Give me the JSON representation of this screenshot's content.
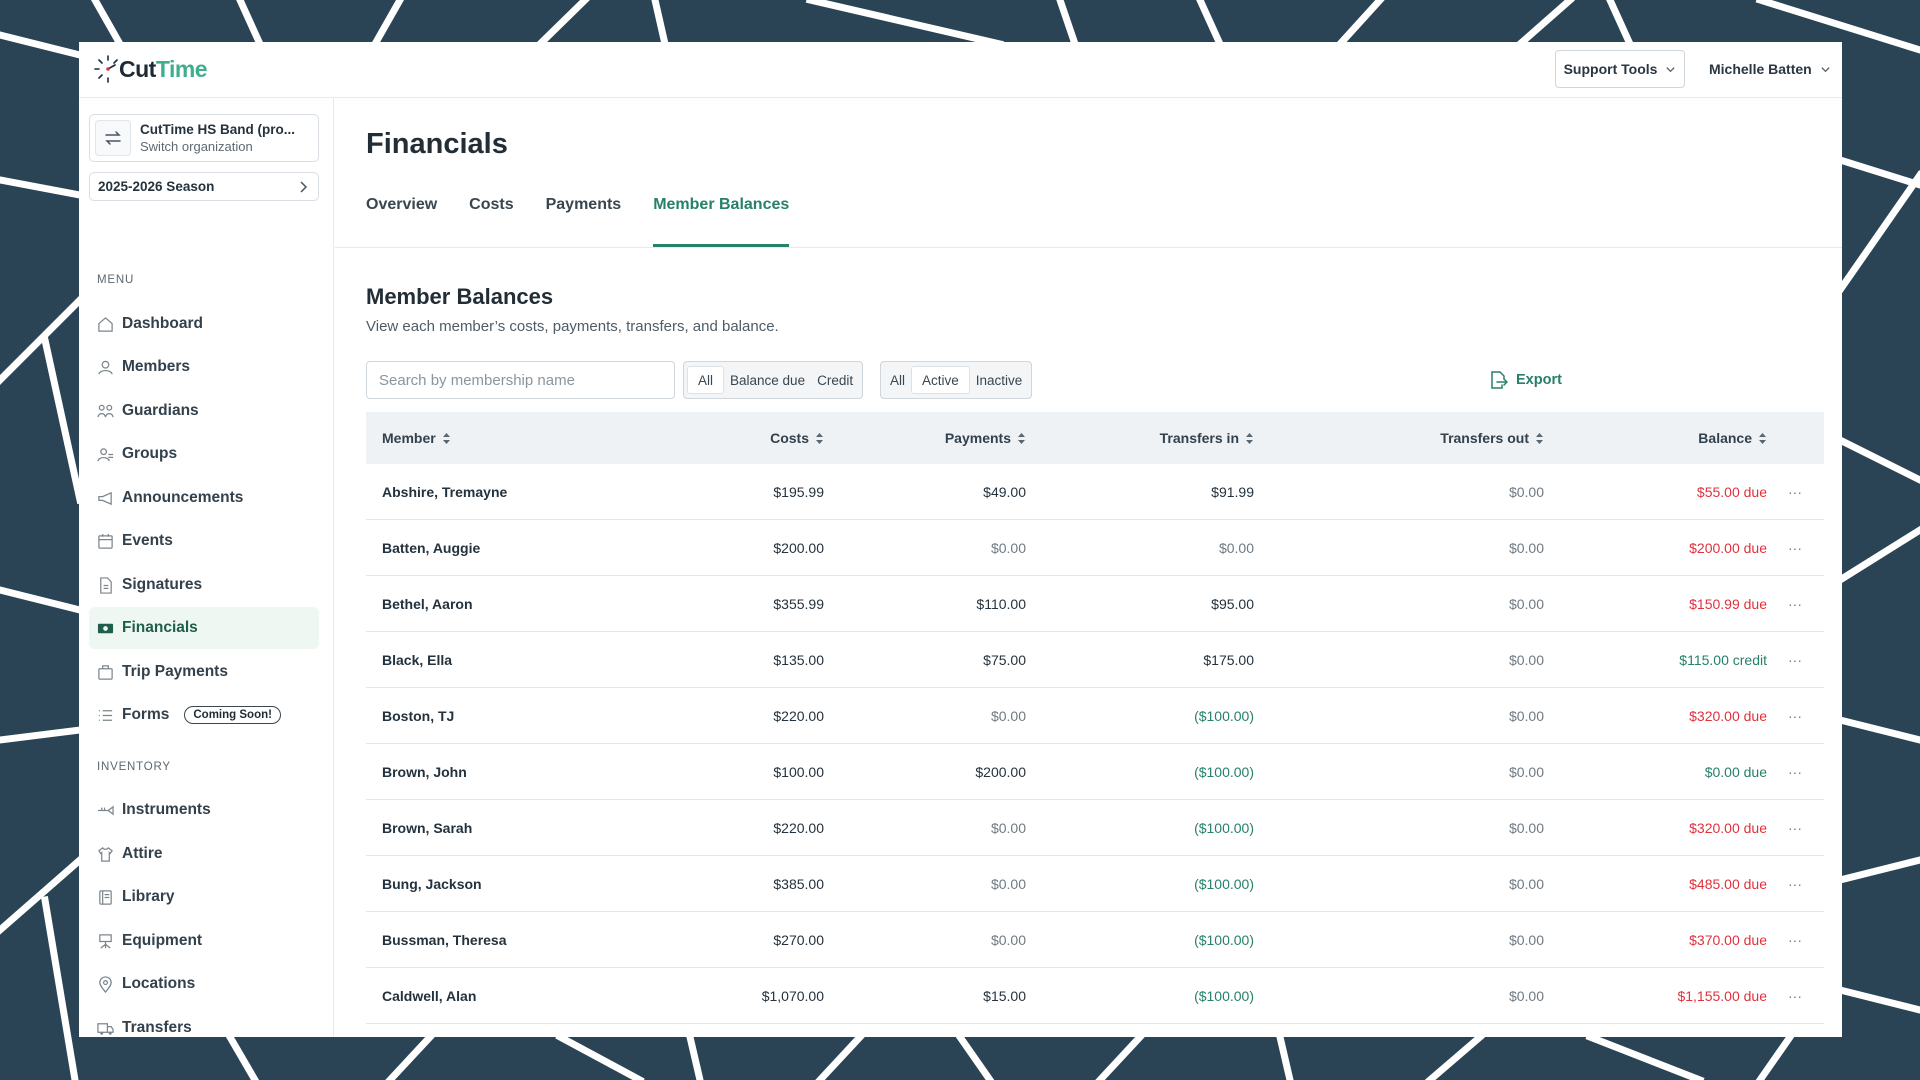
{
  "header": {
    "logo_cut": "Cut",
    "logo_time": "Time",
    "support_label": "Support Tools",
    "user_name": "Michelle Batten"
  },
  "sidebar": {
    "org_name": "CutTime HS Band (pro...",
    "org_sub": "Switch organization",
    "season": "2025-2026 Season",
    "menu_label": "MENU",
    "menu": [
      {
        "label": "Dashboard",
        "icon": "home-icon"
      },
      {
        "label": "Members",
        "icon": "members-icon"
      },
      {
        "label": "Guardians",
        "icon": "guardians-icon"
      },
      {
        "label": "Groups",
        "icon": "groups-icon"
      },
      {
        "label": "Announcements",
        "icon": "megaphone-icon"
      },
      {
        "label": "Events",
        "icon": "calendar-icon"
      },
      {
        "label": "Signatures",
        "icon": "document-icon"
      },
      {
        "label": "Financials",
        "icon": "money-icon",
        "active": true
      },
      {
        "label": "Trip Payments",
        "icon": "suitcase-icon"
      },
      {
        "label": "Forms",
        "icon": "list-icon",
        "badge": "Coming Soon!"
      }
    ],
    "inventory_label": "INVENTORY",
    "inventory": [
      {
        "label": "Instruments",
        "icon": "trumpet-icon"
      },
      {
        "label": "Attire",
        "icon": "shirt-icon"
      },
      {
        "label": "Library",
        "icon": "book-icon"
      },
      {
        "label": "Equipment",
        "icon": "stand-icon"
      },
      {
        "label": "Locations",
        "icon": "pin-icon"
      },
      {
        "label": "Transfers",
        "icon": "truck-icon"
      }
    ]
  },
  "main": {
    "title": "Financials",
    "tabs": [
      {
        "label": "Overview"
      },
      {
        "label": "Costs"
      },
      {
        "label": "Payments"
      },
      {
        "label": "Member Balances",
        "active": true
      }
    ],
    "section_title": "Member Balances",
    "section_desc": "View each member’s costs, payments, transfers, and balance.",
    "search_placeholder": "Search by membership name",
    "filter_balance": [
      "All",
      "Balance due",
      "Credit"
    ],
    "filter_status": [
      "All",
      "Active",
      "Inactive"
    ],
    "export_label": "Export",
    "columns": [
      "Member",
      "Costs",
      "Payments",
      "Transfers in",
      "Transfers out",
      "Balance"
    ],
    "rows": [
      {
        "member": "Abshire, Tremayne",
        "costs": "$195.99",
        "payments": "$49.00",
        "tin": "$91.99",
        "tout": "$0.00",
        "balance": "$55.00 due",
        "bal_status": "due"
      },
      {
        "member": "Batten, Auggie",
        "costs": "$200.00",
        "payments": "$0.00",
        "tin": "$0.00",
        "tout": "$0.00",
        "balance": "$200.00 due",
        "bal_status": "due"
      },
      {
        "member": "Bethel, Aaron",
        "costs": "$355.99",
        "payments": "$110.00",
        "tin": "$95.00",
        "tout": "$0.00",
        "balance": "$150.99 due",
        "bal_status": "due"
      },
      {
        "member": "Black, Ella",
        "costs": "$135.00",
        "payments": "$75.00",
        "tin": "$175.00",
        "tout": "$0.00",
        "balance": "$115.00 credit",
        "bal_status": "credit"
      },
      {
        "member": "Boston, TJ",
        "costs": "$220.00",
        "payments": "$0.00",
        "tin": "($100.00)",
        "tout": "$0.00",
        "balance": "$320.00 due",
        "bal_status": "due"
      },
      {
        "member": "Brown, John",
        "costs": "$100.00",
        "payments": "$200.00",
        "tin": "($100.00)",
        "tout": "$0.00",
        "balance": "$0.00 due",
        "bal_status": "zero"
      },
      {
        "member": "Brown, Sarah",
        "costs": "$220.00",
        "payments": "$0.00",
        "tin": "($100.00)",
        "tout": "$0.00",
        "balance": "$320.00 due",
        "bal_status": "due"
      },
      {
        "member": "Bung, Jackson",
        "costs": "$385.00",
        "payments": "$0.00",
        "tin": "($100.00)",
        "tout": "$0.00",
        "balance": "$485.00 due",
        "bal_status": "due"
      },
      {
        "member": "Bussman, Theresa",
        "costs": "$270.00",
        "payments": "$0.00",
        "tin": "($100.00)",
        "tout": "$0.00",
        "balance": "$370.00 due",
        "bal_status": "due"
      },
      {
        "member": "Caldwell, Alan",
        "costs": "$1,070.00",
        "payments": "$15.00",
        "tin": "($100.00)",
        "tout": "$0.00",
        "balance": "$1,155.00 due",
        "bal_status": "due"
      }
    ],
    "more_glyph": "···"
  },
  "colors": {
    "accent": "#26806a",
    "due": "#e0323e",
    "background": "#2a4456"
  }
}
